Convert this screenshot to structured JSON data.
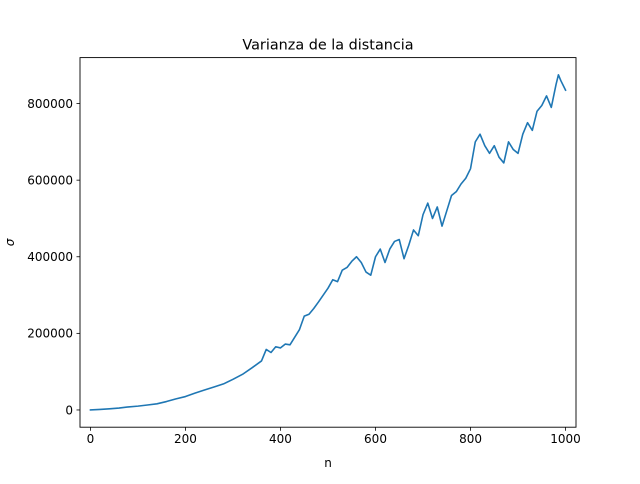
{
  "chart_data": {
    "type": "line",
    "title": "Varianza de la distancia",
    "xlabel": "n",
    "ylabel": "σ",
    "xlim": [
      -22,
      1022
    ],
    "ylim": [
      -45000,
      920000
    ],
    "xticks": [
      0,
      200,
      400,
      600,
      800,
      1000
    ],
    "xtick_labels": [
      "0",
      "200",
      "400",
      "600",
      "800",
      "1000"
    ],
    "yticks": [
      0,
      200000,
      400000,
      600000,
      800000
    ],
    "ytick_labels": [
      "0",
      "200000",
      "400000",
      "600000",
      "800000"
    ],
    "grid": false,
    "legend": "none",
    "color": "#1f77b4",
    "series": [
      {
        "x": [
          0,
          20,
          40,
          60,
          80,
          100,
          120,
          140,
          160,
          180,
          200,
          220,
          240,
          260,
          280,
          300,
          320,
          340,
          360,
          370,
          380,
          390,
          400,
          410,
          420,
          430,
          440,
          450,
          460,
          470,
          480,
          490,
          500,
          510,
          520,
          530,
          540,
          550,
          560,
          570,
          580,
          590,
          600,
          610,
          620,
          630,
          640,
          650,
          660,
          670,
          680,
          690,
          700,
          710,
          720,
          730,
          740,
          750,
          760,
          770,
          780,
          790,
          800,
          810,
          820,
          830,
          840,
          850,
          860,
          870,
          880,
          890,
          900,
          910,
          920,
          930,
          940,
          950,
          960,
          970,
          980,
          985,
          990,
          1000
        ],
        "y": [
          0,
          1500,
          3000,
          5000,
          8000,
          10000,
          13000,
          16000,
          22000,
          29000,
          35000,
          44000,
          52000,
          60000,
          68000,
          80000,
          93000,
          110000,
          128000,
          158000,
          150000,
          165000,
          162000,
          172000,
          170000,
          190000,
          210000,
          245000,
          250000,
          265000,
          282000,
          300000,
          318000,
          340000,
          335000,
          365000,
          372000,
          388000,
          400000,
          385000,
          360000,
          352000,
          400000,
          420000,
          385000,
          420000,
          440000,
          445000,
          395000,
          430000,
          470000,
          455000,
          510000,
          540000,
          500000,
          530000,
          480000,
          520000,
          560000,
          570000,
          590000,
          605000,
          630000,
          700000,
          720000,
          690000,
          670000,
          690000,
          660000,
          645000,
          700000,
          680000,
          670000,
          720000,
          750000,
          730000,
          780000,
          795000,
          820000,
          790000,
          850000,
          875000,
          860000,
          835000
        ]
      }
    ]
  }
}
